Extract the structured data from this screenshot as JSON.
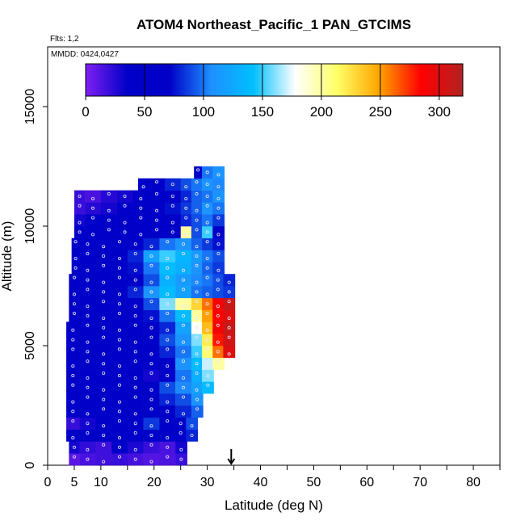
{
  "chart_data": {
    "type": "heatmap",
    "title": "ATOM4 Northeast_Pacific_1 PAN_GTCIMS",
    "flights_label": "Flts: 1,2",
    "dates_label": "MMDD: 0424,0427",
    "xlabel": "Latitude (deg N)",
    "ylabel": "Altitude (m)",
    "xlim": [
      0,
      85
    ],
    "ylim": [
      0,
      17500
    ],
    "x_ticks": [
      0,
      5,
      10,
      20,
      30,
      40,
      50,
      60,
      70,
      80
    ],
    "x_tick_labels": [
      "0",
      "5",
      "10",
      "20",
      "30",
      "40",
      "50",
      "60",
      "70",
      "80"
    ],
    "x_minor_ticks": [
      15,
      25,
      35,
      45,
      55,
      65,
      75,
      85
    ],
    "y_ticks": [
      0,
      5000,
      10000,
      15000
    ],
    "y_tick_labels": [
      "0",
      "5000",
      "10000",
      "15000"
    ],
    "colorbar": {
      "min": 0,
      "max": 320,
      "ticks": [
        0,
        50,
        100,
        150,
        200,
        250,
        300
      ],
      "tick_labels": [
        "0",
        "50",
        "100",
        "150",
        "200",
        "250",
        "300"
      ],
      "colors": [
        "#7f1ff2",
        "#0000c8",
        "#0000c8",
        "#1e90ff",
        "#00bfff",
        "#ffffff",
        "#ffff66",
        "#ffa500",
        "#ff0000",
        "#b22222"
      ]
    },
    "marker": {
      "latitude": 34.5,
      "label": "arrow"
    },
    "series": [
      {
        "name": "row",
        "y": 250,
        "x": [
          4,
          6,
          9,
          12,
          15,
          18,
          21,
          24
        ],
        "values": [
          10,
          15,
          18,
          20,
          16,
          12,
          14,
          20
        ]
      },
      {
        "name": "row",
        "y": 750,
        "x": [
          4,
          6,
          9,
          12,
          15,
          18,
          21,
          24
        ],
        "values": [
          30,
          22,
          18,
          40,
          28,
          20,
          15,
          30
        ]
      },
      {
        "name": "row",
        "y": 1250,
        "x": [
          3.5,
          6,
          9,
          12,
          15,
          18,
          21,
          24,
          26
        ],
        "values": [
          40,
          55,
          45,
          50,
          60,
          55,
          62,
          70,
          80
        ]
      },
      {
        "name": "row",
        "y": 1750,
        "x": [
          3.5,
          6,
          9,
          12,
          15,
          18,
          21,
          24,
          26
        ],
        "values": [
          20,
          30,
          38,
          45,
          60,
          85,
          55,
          70,
          90
        ]
      },
      {
        "name": "row",
        "y": 2250,
        "x": [
          3.5,
          6,
          9,
          12,
          15,
          18,
          21,
          24,
          27
        ],
        "values": [
          40,
          45,
          50,
          55,
          60,
          65,
          70,
          80,
          95
        ]
      },
      {
        "name": "row",
        "y": 2750,
        "x": [
          3.5,
          6,
          9,
          12,
          15,
          18,
          21,
          24,
          27
        ],
        "values": [
          45,
          50,
          50,
          55,
          60,
          70,
          80,
          90,
          110
        ]
      },
      {
        "name": "row",
        "y": 3250,
        "x": [
          3.5,
          6,
          9,
          12,
          15,
          18,
          21,
          24,
          27,
          29
        ],
        "values": [
          40,
          45,
          48,
          50,
          55,
          70,
          90,
          105,
          120,
          140
        ]
      },
      {
        "name": "row",
        "y": 3750,
        "x": [
          3.5,
          6,
          9,
          12,
          15,
          18,
          21,
          24,
          27,
          29
        ],
        "values": [
          45,
          40,
          45,
          50,
          55,
          30,
          60,
          100,
          130,
          160
        ]
      },
      {
        "name": "row",
        "y": 4250,
        "x": [
          3.5,
          6,
          9,
          12,
          15,
          18,
          21,
          24,
          27,
          29,
          31
        ],
        "values": [
          40,
          45,
          50,
          55,
          50,
          60,
          70,
          110,
          140,
          170,
          200
        ]
      },
      {
        "name": "row",
        "y": 4750,
        "x": [
          3.5,
          6,
          9,
          12,
          15,
          18,
          21,
          24,
          27,
          29,
          31,
          33
        ],
        "values": [
          45,
          50,
          55,
          50,
          55,
          60,
          80,
          100,
          150,
          210,
          260,
          300
        ]
      },
      {
        "name": "row",
        "y": 5250,
        "x": [
          3.5,
          6,
          9,
          12,
          15,
          18,
          21,
          24,
          27,
          29,
          31,
          33
        ],
        "values": [
          40,
          50,
          55,
          60,
          55,
          70,
          90,
          110,
          160,
          220,
          280,
          305
        ]
      },
      {
        "name": "row",
        "y": 5750,
        "x": [
          3.5,
          6,
          9,
          12,
          15,
          18,
          21,
          24,
          27,
          29,
          31,
          33
        ],
        "values": [
          45,
          45,
          50,
          55,
          60,
          35,
          80,
          120,
          180,
          240,
          290,
          310
        ]
      },
      {
        "name": "row",
        "y": 6250,
        "x": [
          4,
          6,
          9,
          12,
          15,
          18,
          21,
          24,
          27,
          29,
          31,
          33
        ],
        "values": [
          50,
          55,
          55,
          60,
          60,
          75,
          100,
          140,
          200,
          250,
          285,
          300
        ]
      },
      {
        "name": "row",
        "y": 6750,
        "x": [
          4,
          6,
          9,
          12,
          15,
          18,
          21,
          24,
          27,
          29,
          31,
          33
        ],
        "values": [
          45,
          50,
          55,
          60,
          70,
          90,
          160,
          200,
          230,
          260,
          290,
          310
        ]
      },
      {
        "name": "row",
        "y": 7250,
        "x": [
          4,
          6,
          9,
          12,
          15,
          18,
          21,
          24,
          27,
          29,
          31,
          33
        ],
        "values": [
          50,
          55,
          60,
          65,
          80,
          110,
          140,
          120,
          100,
          95,
          90,
          85
        ]
      },
      {
        "name": "row",
        "y": 7750,
        "x": [
          4,
          6,
          9,
          12,
          15,
          18,
          21,
          24,
          27,
          29,
          31,
          33
        ],
        "values": [
          45,
          50,
          55,
          60,
          70,
          90,
          130,
          115,
          105,
          100,
          90,
          80
        ]
      },
      {
        "name": "row",
        "y": 8250,
        "x": [
          4.5,
          6,
          9,
          12,
          15,
          18,
          21,
          24,
          27,
          29,
          31
        ],
        "values": [
          40,
          50,
          55,
          60,
          75,
          100,
          140,
          130,
          110,
          95,
          85
        ]
      },
      {
        "name": "row",
        "y": 8750,
        "x": [
          4.5,
          6,
          9,
          12,
          15,
          18,
          21,
          24,
          27,
          29,
          31
        ],
        "values": [
          45,
          50,
          55,
          65,
          80,
          120,
          150,
          135,
          115,
          100,
          90
        ]
      },
      {
        "name": "row",
        "y": 9250,
        "x": [
          4.5,
          6,
          9,
          12,
          15,
          18,
          21,
          24,
          27,
          29,
          31
        ],
        "values": [
          40,
          45,
          50,
          55,
          65,
          80,
          100,
          110,
          95,
          85,
          75
        ]
      },
      {
        "name": "row",
        "y": 9750,
        "x": [
          5,
          7,
          10,
          13,
          16,
          19,
          22,
          25,
          27,
          29,
          31
        ],
        "values": [
          40,
          45,
          48,
          50,
          55,
          60,
          70,
          200,
          90,
          150,
          70
        ]
      },
      {
        "name": "row",
        "y": 10250,
        "x": [
          5,
          7,
          10,
          13,
          16,
          19,
          22,
          25,
          27,
          29,
          31
        ],
        "values": [
          30,
          35,
          40,
          45,
          50,
          60,
          70,
          80,
          90,
          100,
          85
        ]
      },
      {
        "name": "row",
        "y": 10750,
        "x": [
          5,
          7,
          10,
          13,
          16,
          19,
          22,
          25,
          27,
          29,
          31
        ],
        "values": [
          20,
          25,
          30,
          40,
          50,
          60,
          75,
          85,
          95,
          110,
          100
        ]
      },
      {
        "name": "row",
        "y": 11250,
        "x": [
          5,
          7,
          10,
          13,
          16,
          19,
          22,
          25,
          27,
          29,
          31
        ],
        "values": [
          20,
          15,
          25,
          30,
          45,
          55,
          65,
          80,
          95,
          100,
          110
        ]
      },
      {
        "name": "row",
        "y": 11750,
        "x": [
          17,
          19,
          22,
          25,
          27,
          29,
          31
        ],
        "values": [
          60,
          70,
          80,
          90,
          100,
          110,
          105
        ]
      },
      {
        "name": "row",
        "y": 12250,
        "x": [
          27.5,
          29,
          31
        ],
        "values": [
          50,
          100,
          110
        ]
      }
    ]
  }
}
